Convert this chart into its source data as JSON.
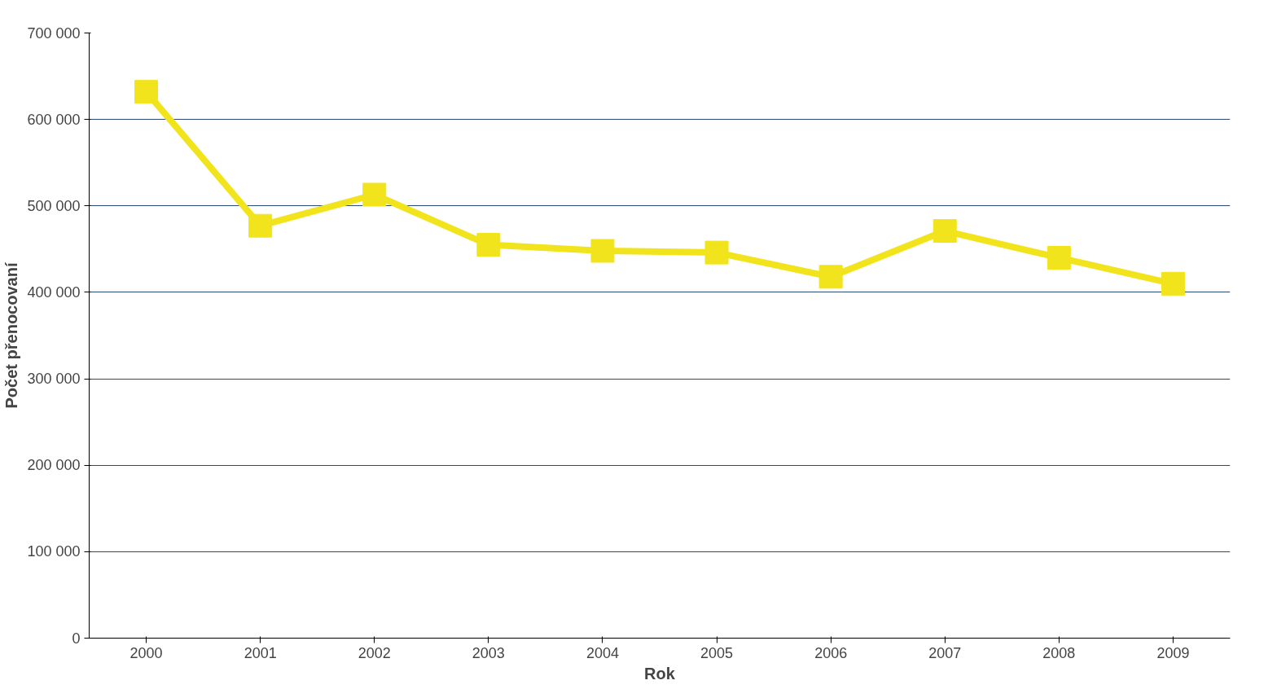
{
  "chart_data": {
    "type": "line",
    "xlabel": "Rok",
    "ylabel": "Počet přenocovaní",
    "categories": [
      "2000",
      "2001",
      "2002",
      "2003",
      "2004",
      "2005",
      "2006",
      "2007",
      "2008",
      "2009"
    ],
    "series": [
      {
        "color": "#f2e41c",
        "values": [
          632000,
          477000,
          513000,
          455000,
          448000,
          446000,
          418000,
          471000,
          440000,
          410000
        ]
      }
    ],
    "ylim": [
      0,
      700000
    ],
    "yticks": [
      {
        "value": 0,
        "label": "0"
      },
      {
        "value": 100000,
        "label": "100 000"
      },
      {
        "value": 200000,
        "label": "200 000"
      },
      {
        "value": 300000,
        "label": "300 000"
      },
      {
        "value": 400000,
        "label": "400 000"
      },
      {
        "value": 500000,
        "label": "500 000"
      },
      {
        "value": 600000,
        "label": "600 000"
      },
      {
        "value": 700000,
        "label": "700 000"
      }
    ],
    "grid": "y",
    "marker": "square",
    "line_style": "solid"
  }
}
